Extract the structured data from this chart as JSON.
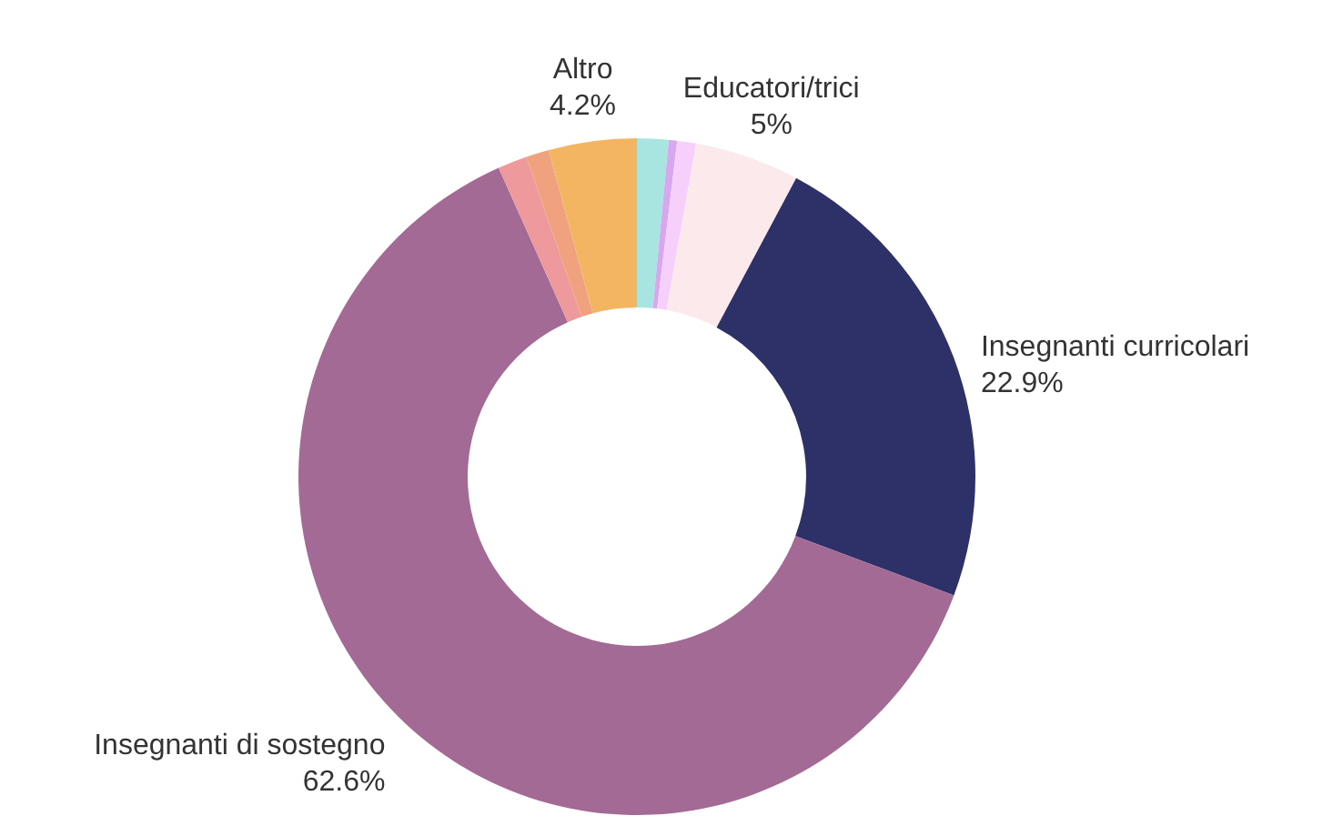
{
  "chart_data": {
    "type": "donut",
    "categories": [
      null,
      null,
      null,
      "Educatori/trici",
      "Insegnanti curricolari",
      "Insegnanti di sostegno",
      null,
      null,
      "Altro"
    ],
    "values": [
      1.5,
      0.4,
      0.9,
      5,
      22.9,
      62.6,
      1.4,
      1.1,
      4.2
    ],
    "value_labels": [
      null,
      null,
      null,
      "5%",
      "22.9%",
      "62.6%",
      null,
      null,
      "4.2%"
    ],
    "colors": [
      "#a8e4e0",
      "#d7a8f0",
      "#f6d0fa",
      "#fbe9eb",
      "#2e3168",
      "#a46a96",
      "#ee9a9c",
      "#f0a27e",
      "#f4b562"
    ]
  }
}
